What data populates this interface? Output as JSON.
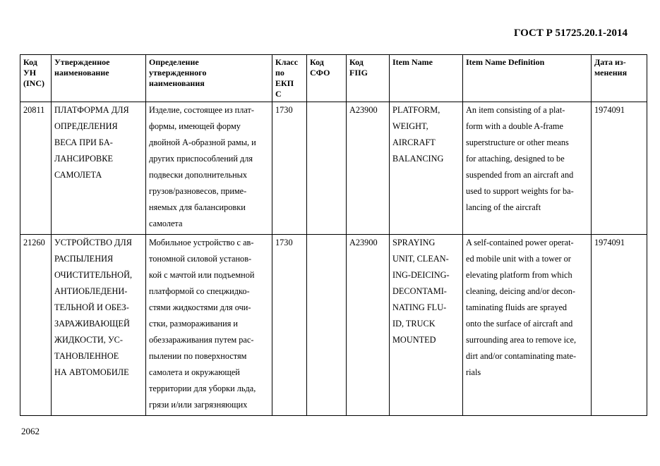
{
  "header": {
    "doc_code": "ГОСТ Р 51725.20.1-2014"
  },
  "table": {
    "columns": [
      "Код\nУН\n(INC)",
      "Утвержденное\nнаименование",
      "Определение\nутвержденного\nнаименования",
      "Класс\nпо\nЕКП\nС",
      "Код\nСФО",
      "Код\nFIIG",
      "Item Name",
      "Item Name Definition",
      "Дата из-\nменения"
    ],
    "rows": [
      [
        "20811",
        "ПЛАТФОРМА ДЛЯ\nОПРЕДЕЛЕНИЯ\nВЕСА ПРИ БА-\nЛАНСИРОВКЕ\nСАМОЛЕТА",
        "Изделие, состоящее из плат-\nформы, имеющей форму\nдвойной А-образной рамы, и\nдругих приспособлений для\nподвески дополнительных\nгрузов/разновесов, приме-\nняемых для балансировки\nсамолета",
        "1730",
        "",
        "A23900",
        "PLATFORM,\nWEIGHT,\nAIRCRAFT\nBALANCING",
        "An item consisting of a plat-\nform with a double A-frame\nsuperstructure or other means\nfor attaching, designed to be\nsuspended from an aircraft and\nused to support weights for ba-\nlancing of the aircraft",
        "1974091"
      ],
      [
        "21260",
        "УСТРОЙСТВО ДЛЯ\nРАСПЫЛЕНИЯ\nОЧИСТИТЕЛЬНОЙ,\nАНТИОБЛЕДЕНИ-\nТЕЛЬНОЙ И ОБЕЗ-\nЗАРАЖИВАЮЩЕЙ\nЖИДКОСТИ, УС-\nТАНОВЛЕННОЕ\nНА АВТОМОБИЛЕ",
        "Мобильное устройство с ав-\nтономной силовой установ-\nкой с мачтой или подъемной\nплатформой со спецжидко-\nстями жидкостями для очи-\nстки, размораживания и\nобеззараживания путем рас-\nпылении по поверхностям\nсамолета и окружающей\nтерритории для уборки льда,\nгрязи и/или загрязняющих",
        "1730",
        "",
        "A23900",
        "SPRAYING\nUNIT, CLEAN-\nING-DEICING-\nDECONTAMI-\nNATING FLU-\nID, TRUCK\nMOUNTED",
        "A self-contained power operat-\ned mobile unit with a tower or\nelevating platform from which\ncleaning, deicing and/or decon-\ntaminating fluids are sprayed\nonto the surface of aircraft and\nsurrounding area to remove ice,\ndirt and/or contaminating mate-\nrials",
        "1974091"
      ]
    ]
  },
  "footer": {
    "page_number": "2062"
  }
}
